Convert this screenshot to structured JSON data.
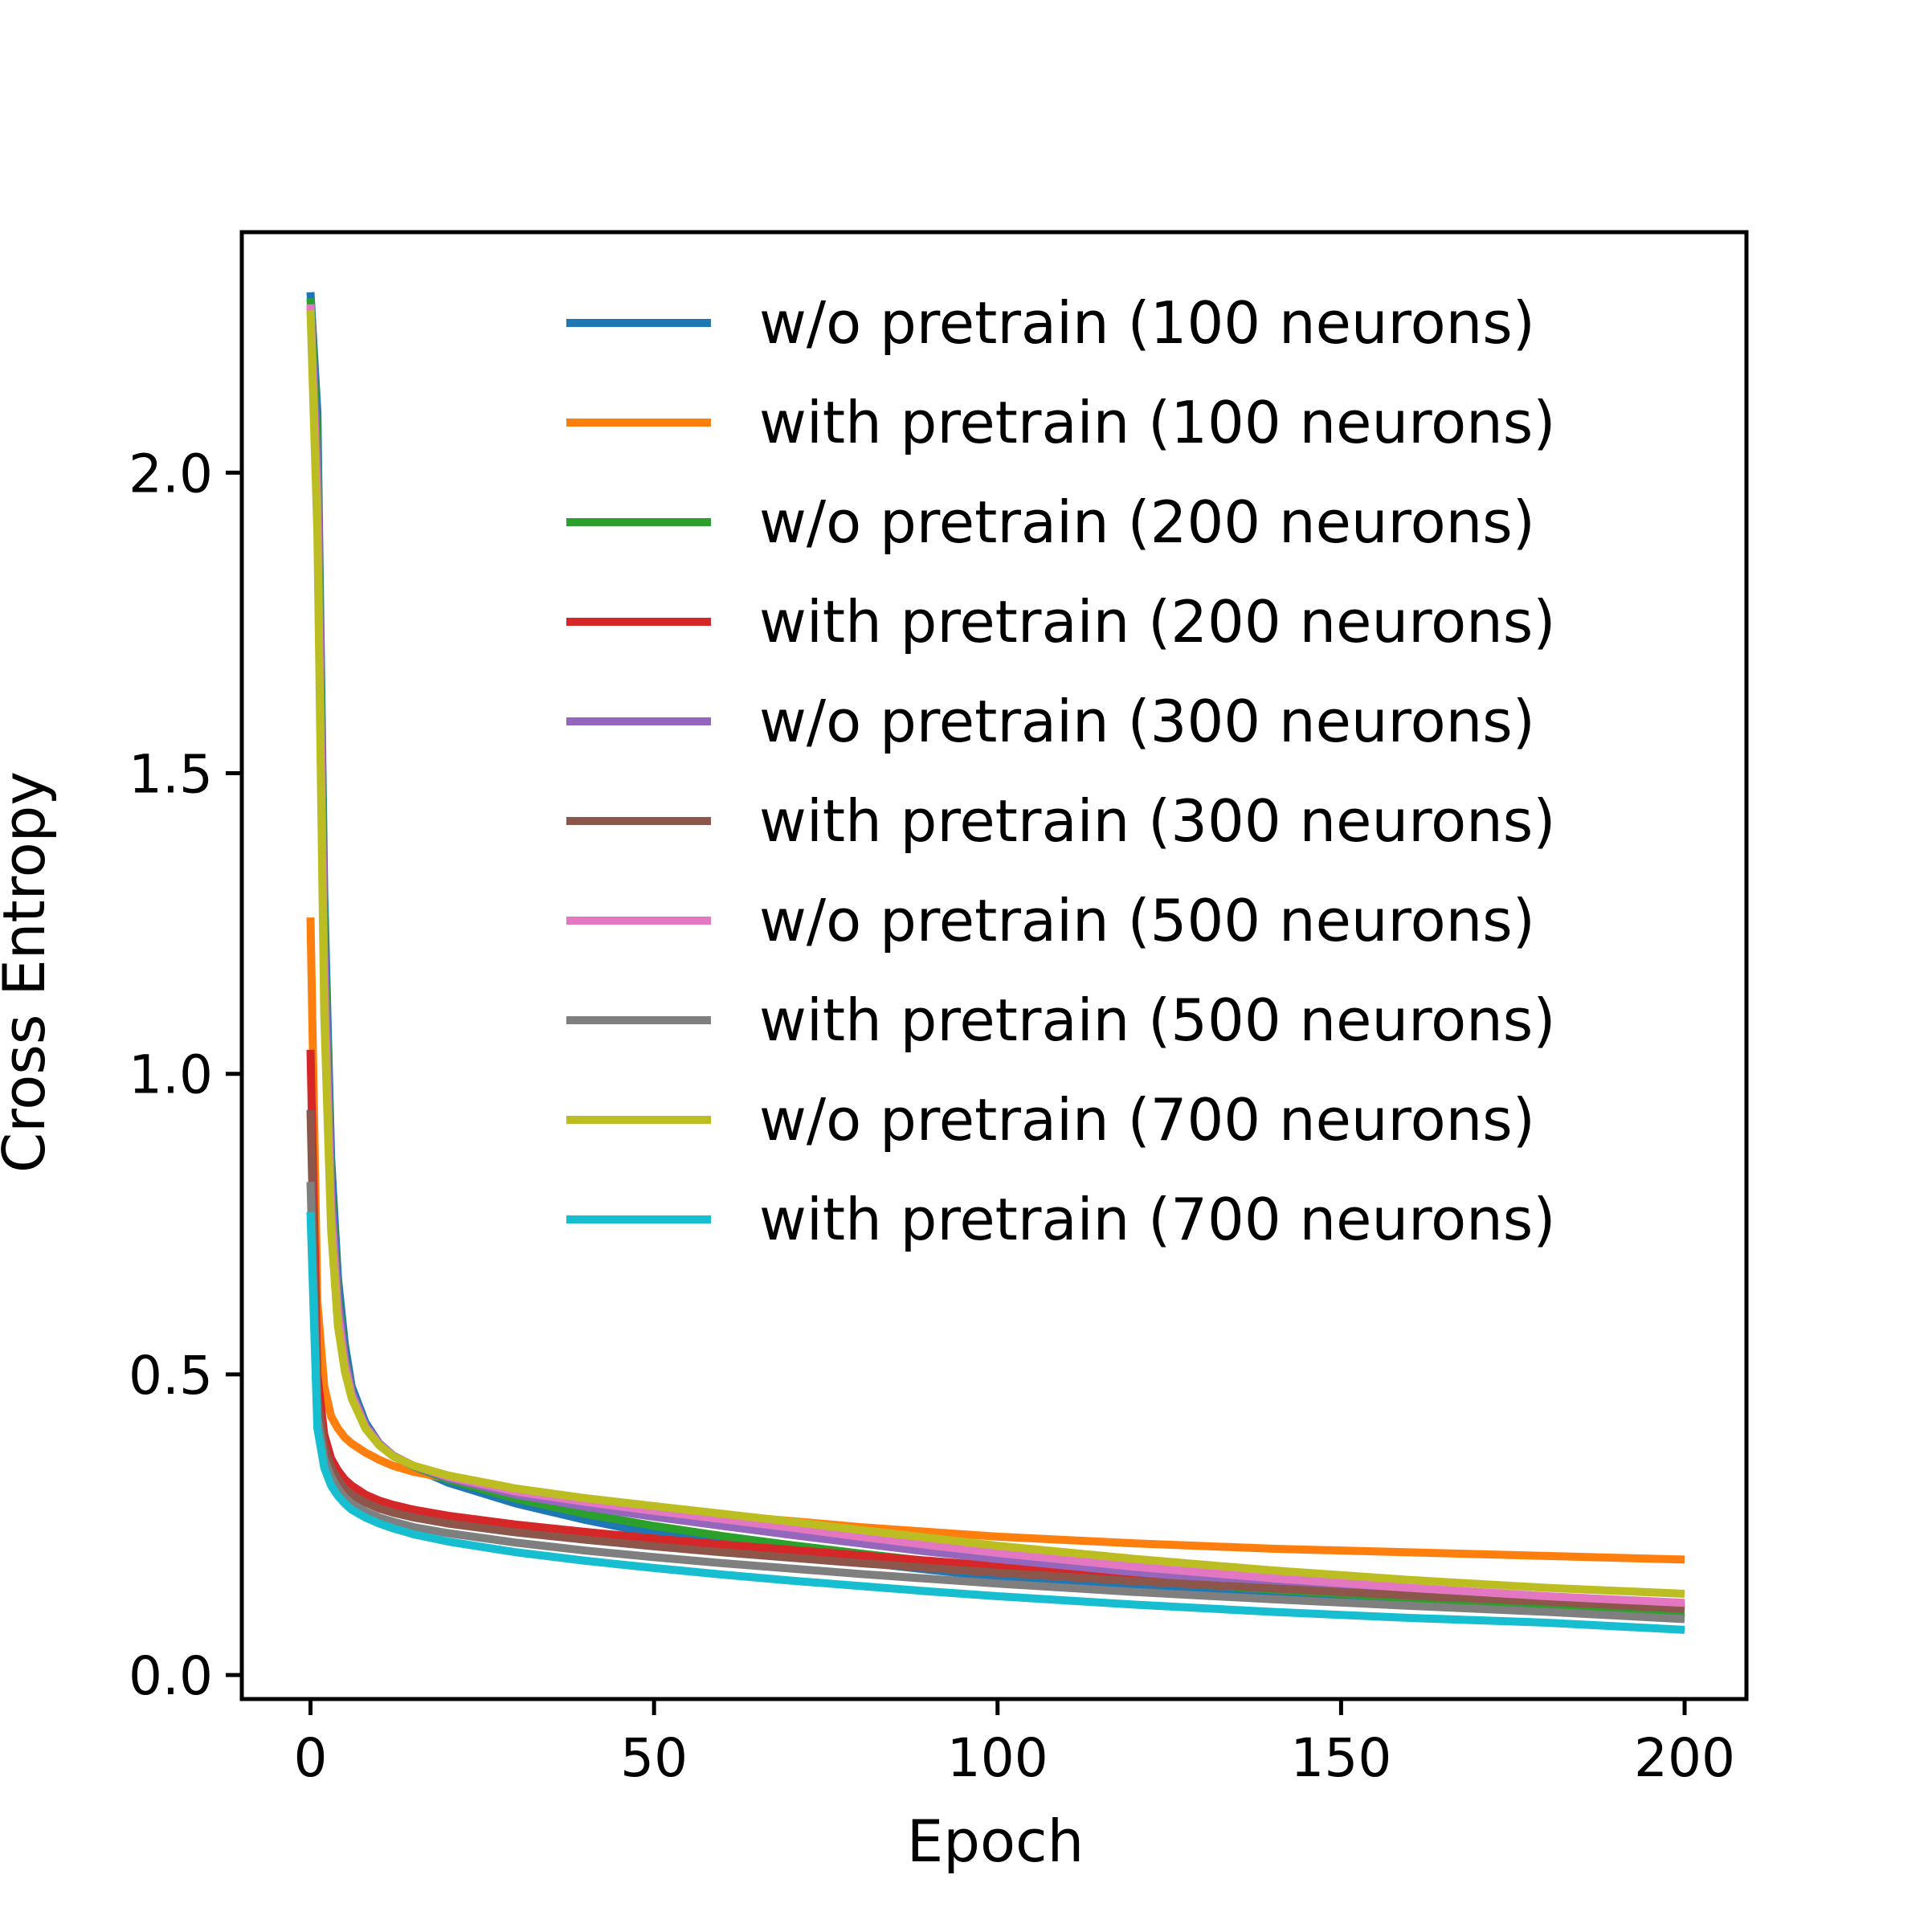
{
  "chart_data": {
    "type": "line",
    "title": "",
    "xlabel": "Epoch",
    "ylabel": "Cross Entropy",
    "xlim": [
      -10,
      209
    ],
    "ylim": [
      -0.04,
      2.4
    ],
    "xticks": [
      0,
      50,
      100,
      150,
      200
    ],
    "xtick_labels": [
      "0",
      "50",
      "100",
      "150",
      "200"
    ],
    "yticks": [
      0.0,
      0.5,
      1.0,
      1.5,
      2.0
    ],
    "ytick_labels": [
      "0.0",
      "0.5",
      "1.0",
      "1.5",
      "2.0"
    ],
    "grid": false,
    "legend_position": "upper-right",
    "x": [
      0,
      1,
      2,
      3,
      4,
      5,
      6,
      8,
      10,
      12,
      15,
      20,
      30,
      40,
      50,
      60,
      70,
      80,
      90,
      100,
      120,
      140,
      160,
      180,
      200
    ],
    "series": [
      {
        "name": "w/o pretrain (100 neurons)",
        "color": "#1f77b4",
        "values": [
          2.3,
          2.1,
          1.3,
          0.86,
          0.66,
          0.55,
          0.48,
          0.42,
          0.385,
          0.365,
          0.345,
          0.32,
          0.285,
          0.258,
          0.235,
          0.218,
          0.202,
          0.188,
          0.175,
          0.163,
          0.145,
          0.13,
          0.118,
          0.108,
          0.095
        ]
      },
      {
        "name": "with pretrain (100 neurons)",
        "color": "#ff7f0e",
        "values": [
          1.26,
          0.62,
          0.48,
          0.43,
          0.41,
          0.395,
          0.385,
          0.37,
          0.358,
          0.348,
          0.338,
          0.327,
          0.308,
          0.29,
          0.278,
          0.266,
          0.256,
          0.246,
          0.238,
          0.23,
          0.219,
          0.21,
          0.204,
          0.198,
          0.192
        ]
      },
      {
        "name": "w/o pretrain (200 neurons)",
        "color": "#2ca02c",
        "values": [
          2.29,
          2.05,
          1.25,
          0.82,
          0.63,
          0.53,
          0.47,
          0.415,
          0.385,
          0.365,
          0.347,
          0.325,
          0.293,
          0.268,
          0.248,
          0.231,
          0.216,
          0.202,
          0.189,
          0.178,
          0.158,
          0.142,
          0.128,
          0.116,
          0.104
        ]
      },
      {
        "name": "with pretrain (200 neurons)",
        "color": "#d62728",
        "values": [
          1.04,
          0.5,
          0.4,
          0.36,
          0.34,
          0.325,
          0.315,
          0.3,
          0.29,
          0.283,
          0.275,
          0.265,
          0.25,
          0.238,
          0.227,
          0.217,
          0.208,
          0.199,
          0.19,
          0.181,
          0.166,
          0.152,
          0.14,
          0.13,
          0.115
        ]
      },
      {
        "name": "w/o pretrain (300 neurons)",
        "color": "#9467bd",
        "values": [
          2.28,
          2.0,
          1.2,
          0.8,
          0.62,
          0.525,
          0.47,
          0.415,
          0.385,
          0.365,
          0.348,
          0.328,
          0.3,
          0.28,
          0.263,
          0.248,
          0.233,
          0.219,
          0.205,
          0.193,
          0.171,
          0.153,
          0.137,
          0.123,
          0.11
        ]
      },
      {
        "name": "with pretrain (300 neurons)",
        "color": "#8c564b",
        "values": [
          0.94,
          0.46,
          0.38,
          0.345,
          0.325,
          0.31,
          0.3,
          0.287,
          0.277,
          0.27,
          0.262,
          0.252,
          0.237,
          0.225,
          0.214,
          0.204,
          0.195,
          0.186,
          0.178,
          0.17,
          0.156,
          0.144,
          0.132,
          0.122,
          0.11
        ]
      },
      {
        "name": "w/o pretrain (500 neurons)",
        "color": "#e377c2",
        "values": [
          2.28,
          1.95,
          1.15,
          0.77,
          0.6,
          0.515,
          0.465,
          0.412,
          0.383,
          0.364,
          0.348,
          0.33,
          0.305,
          0.288,
          0.273,
          0.259,
          0.245,
          0.23,
          0.216,
          0.203,
          0.18,
          0.161,
          0.145,
          0.131,
          0.12
        ]
      },
      {
        "name": "with pretrain (500 neurons)",
        "color": "#7f7f7f",
        "values": [
          0.82,
          0.43,
          0.36,
          0.33,
          0.31,
          0.295,
          0.285,
          0.272,
          0.262,
          0.255,
          0.246,
          0.236,
          0.22,
          0.207,
          0.196,
          0.186,
          0.177,
          0.168,
          0.16,
          0.152,
          0.138,
          0.126,
          0.115,
          0.105,
          0.093
        ]
      },
      {
        "name": "w/o pretrain (700 neurons)",
        "color": "#bcbd22",
        "values": [
          2.27,
          1.9,
          1.1,
          0.74,
          0.58,
          0.505,
          0.46,
          0.41,
          0.382,
          0.364,
          0.348,
          0.332,
          0.31,
          0.294,
          0.281,
          0.268,
          0.255,
          0.241,
          0.228,
          0.215,
          0.193,
          0.174,
          0.158,
          0.145,
          0.135
        ]
      },
      {
        "name": "with pretrain (700 neurons)",
        "color": "#17becf",
        "values": [
          0.77,
          0.41,
          0.345,
          0.315,
          0.298,
          0.285,
          0.275,
          0.262,
          0.252,
          0.244,
          0.234,
          0.222,
          0.204,
          0.19,
          0.178,
          0.167,
          0.157,
          0.148,
          0.139,
          0.131,
          0.117,
          0.105,
          0.095,
          0.087,
          0.075
        ]
      }
    ]
  }
}
